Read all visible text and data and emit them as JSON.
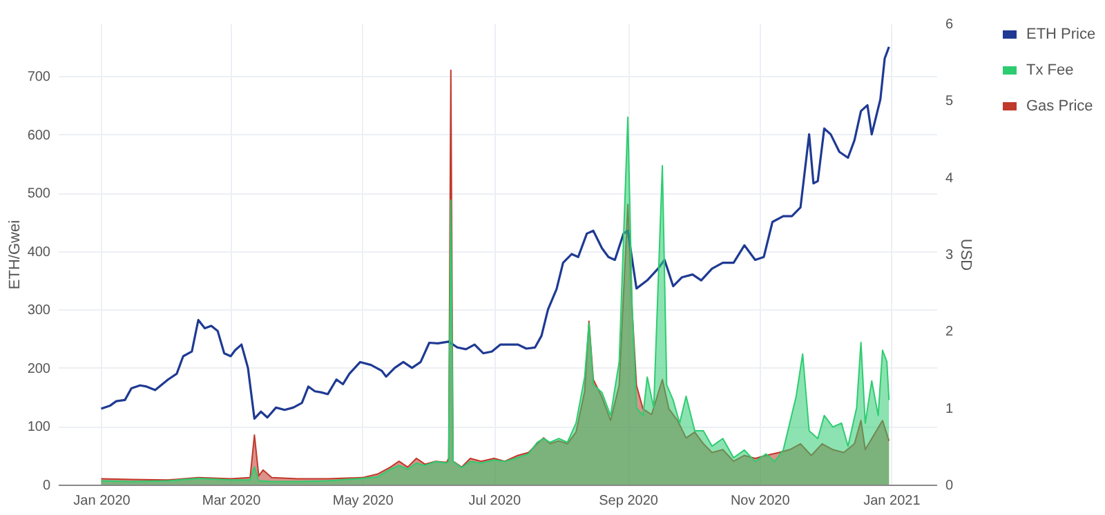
{
  "chart_data": {
    "type": "line",
    "ylabel": "ETH/Gwei",
    "y2label": "USD",
    "grid": true,
    "legend": "top right",
    "xlim": [
      "2019-12-12",
      "2021-01-22"
    ],
    "xticks": [
      {
        "value": "2020-01-01",
        "label": "Jan 2020"
      },
      {
        "value": "2020-03-01",
        "label": "Mar 2020"
      },
      {
        "value": "2020-05-01",
        "label": "May 2020"
      },
      {
        "value": "2020-07-01",
        "label": "Jul 2020"
      },
      {
        "value": "2020-09-01",
        "label": "Sep 2020"
      },
      {
        "value": "2020-11-01",
        "label": "Nov 2020"
      },
      {
        "value": "2021-01-01",
        "label": "Jan 2021"
      }
    ],
    "ylim": [
      0,
      790
    ],
    "yticks": [
      0,
      100,
      200,
      300,
      400,
      500,
      600,
      700
    ],
    "y2lim": [
      0,
      6
    ],
    "y2ticks": [
      0,
      1,
      2,
      3,
      4,
      5,
      6
    ],
    "series": [
      {
        "name": "ETH Price",
        "color": "#1f3a93",
        "x": [
          "2020-01-01",
          "2020-01-05",
          "2020-01-08",
          "2020-01-12",
          "2020-01-15",
          "2020-01-19",
          "2020-01-22",
          "2020-01-26",
          "2020-02-01",
          "2020-02-05",
          "2020-02-08",
          "2020-02-12",
          "2020-02-15",
          "2020-02-18",
          "2020-02-21",
          "2020-02-24",
          "2020-02-27",
          "2020-03-01",
          "2020-03-03",
          "2020-03-06",
          "2020-03-09",
          "2020-03-12",
          "2020-03-15",
          "2020-03-18",
          "2020-03-22",
          "2020-03-26",
          "2020-03-30",
          "2020-04-03",
          "2020-04-06",
          "2020-04-09",
          "2020-04-12",
          "2020-04-15",
          "2020-04-19",
          "2020-04-22",
          "2020-04-25",
          "2020-04-30",
          "2020-05-05",
          "2020-05-10",
          "2020-05-12",
          "2020-05-16",
          "2020-05-20",
          "2020-05-24",
          "2020-05-28",
          "2020-06-01",
          "2020-06-05",
          "2020-06-10",
          "2020-06-14",
          "2020-06-18",
          "2020-06-22",
          "2020-06-26",
          "2020-06-30",
          "2020-07-04",
          "2020-07-08",
          "2020-07-12",
          "2020-07-16",
          "2020-07-20",
          "2020-07-23",
          "2020-07-26",
          "2020-07-30",
          "2020-08-02",
          "2020-08-06",
          "2020-08-09",
          "2020-08-13",
          "2020-08-16",
          "2020-08-20",
          "2020-08-23",
          "2020-08-26",
          "2020-08-30",
          "2020-09-01",
          "2020-09-05",
          "2020-09-10",
          "2020-09-15",
          "2020-09-18",
          "2020-09-22",
          "2020-09-26",
          "2020-10-01",
          "2020-10-05",
          "2020-10-10",
          "2020-10-15",
          "2020-10-20",
          "2020-10-25",
          "2020-10-30",
          "2020-11-03",
          "2020-11-07",
          "2020-11-12",
          "2020-11-16",
          "2020-11-20",
          "2020-11-24",
          "2020-11-26",
          "2020-11-28",
          "2020-12-01",
          "2020-12-04",
          "2020-12-08",
          "2020-12-12",
          "2020-12-15",
          "2020-12-18",
          "2020-12-21",
          "2020-12-23",
          "2020-12-27",
          "2020-12-29",
          "2020-12-31"
        ],
        "values": [
          130,
          135,
          143,
          145,
          165,
          170,
          168,
          162,
          180,
          190,
          220,
          228,
          282,
          268,
          272,
          263,
          225,
          220,
          230,
          240,
          200,
          113,
          125,
          115,
          132,
          128,
          132,
          140,
          168,
          160,
          158,
          155,
          180,
          172,
          190,
          210,
          205,
          195,
          185,
          200,
          210,
          200,
          210,
          243,
          242,
          245,
          235,
          232,
          240,
          225,
          228,
          240,
          240,
          240,
          233,
          235,
          255,
          300,
          335,
          380,
          395,
          390,
          430,
          435,
          405,
          390,
          385,
          430,
          435,
          336,
          350,
          370,
          385,
          340,
          355,
          360,
          350,
          370,
          380,
          380,
          410,
          385,
          390,
          450,
          460,
          460,
          475,
          600,
          516,
          520,
          610,
          600,
          570,
          560,
          590,
          640,
          650,
          600,
          660,
          730,
          750
        ]
      },
      {
        "name": "Tx Fee",
        "type": "area",
        "axis": "y2",
        "color": "#2ecc71",
        "x": [
          "2020-01-01",
          "2020-01-15",
          "2020-02-01",
          "2020-02-15",
          "2020-03-01",
          "2020-03-10",
          "2020-03-12",
          "2020-03-14",
          "2020-03-20",
          "2020-04-01",
          "2020-04-15",
          "2020-05-01",
          "2020-05-08",
          "2020-05-14",
          "2020-05-18",
          "2020-05-22",
          "2020-05-26",
          "2020-05-30",
          "2020-06-04",
          "2020-06-09",
          "2020-06-10",
          "2020-06-11",
          "2020-06-12",
          "2020-06-16",
          "2020-06-20",
          "2020-06-25",
          "2020-07-01",
          "2020-07-06",
          "2020-07-12",
          "2020-07-17",
          "2020-07-21",
          "2020-07-24",
          "2020-07-27",
          "2020-07-31",
          "2020-08-04",
          "2020-08-08",
          "2020-08-12",
          "2020-08-14",
          "2020-08-16",
          "2020-08-20",
          "2020-08-24",
          "2020-08-28",
          "2020-09-01",
          "2020-09-03",
          "2020-09-05",
          "2020-09-08",
          "2020-09-10",
          "2020-09-13",
          "2020-09-17",
          "2020-09-19",
          "2020-09-22",
          "2020-09-25",
          "2020-09-28",
          "2020-10-02",
          "2020-10-06",
          "2020-10-10",
          "2020-10-15",
          "2020-10-20",
          "2020-10-25",
          "2020-10-30",
          "2020-11-04",
          "2020-11-08",
          "2020-11-12",
          "2020-11-15",
          "2020-11-18",
          "2020-11-21",
          "2020-11-24",
          "2020-11-28",
          "2020-12-01",
          "2020-12-05",
          "2020-12-09",
          "2020-12-12",
          "2020-12-16",
          "2020-12-18",
          "2020-12-20",
          "2020-12-23",
          "2020-12-26",
          "2020-12-28",
          "2020-12-30",
          "2020-12-31"
        ],
        "values": [
          0.05,
          0.04,
          0.05,
          0.08,
          0.06,
          0.06,
          0.23,
          0.05,
          0.04,
          0.04,
          0.05,
          0.08,
          0.1,
          0.2,
          0.25,
          0.2,
          0.28,
          0.25,
          0.3,
          0.28,
          0.3,
          3.7,
          0.3,
          0.22,
          0.3,
          0.28,
          0.32,
          0.3,
          0.35,
          0.4,
          0.55,
          0.6,
          0.55,
          0.6,
          0.55,
          0.8,
          1.4,
          2.1,
          1.3,
          1.2,
          0.9,
          1.6,
          4.78,
          2.3,
          1.0,
          0.9,
          1.4,
          1.0,
          4.15,
          1.3,
          1.1,
          0.8,
          1.15,
          0.7,
          0.7,
          0.5,
          0.6,
          0.35,
          0.45,
          0.3,
          0.4,
          0.3,
          0.45,
          0.8,
          1.15,
          1.7,
          0.7,
          0.6,
          0.9,
          0.75,
          0.8,
          0.5,
          1.0,
          1.85,
          0.8,
          1.35,
          0.9,
          1.75,
          1.6,
          1.1
        ]
      },
      {
        "name": "Gas Price",
        "type": "area",
        "color": "#c0392b",
        "x": [
          "2020-01-01",
          "2020-01-15",
          "2020-02-01",
          "2020-02-15",
          "2020-03-01",
          "2020-03-10",
          "2020-03-12",
          "2020-03-14",
          "2020-03-16",
          "2020-03-20",
          "2020-04-01",
          "2020-04-15",
          "2020-05-01",
          "2020-05-08",
          "2020-05-14",
          "2020-05-18",
          "2020-05-22",
          "2020-05-26",
          "2020-05-30",
          "2020-06-04",
          "2020-06-09",
          "2020-06-10",
          "2020-06-11",
          "2020-06-12",
          "2020-06-16",
          "2020-06-20",
          "2020-06-25",
          "2020-07-01",
          "2020-07-06",
          "2020-07-12",
          "2020-07-17",
          "2020-07-21",
          "2020-07-24",
          "2020-07-27",
          "2020-07-31",
          "2020-08-04",
          "2020-08-08",
          "2020-08-12",
          "2020-08-14",
          "2020-08-16",
          "2020-08-20",
          "2020-08-24",
          "2020-08-28",
          "2020-09-01",
          "2020-09-03",
          "2020-09-05",
          "2020-09-08",
          "2020-09-12",
          "2020-09-17",
          "2020-09-20",
          "2020-09-24",
          "2020-09-28",
          "2020-10-02",
          "2020-10-06",
          "2020-10-10",
          "2020-10-15",
          "2020-10-20",
          "2020-10-25",
          "2020-10-30",
          "2020-11-04",
          "2020-11-10",
          "2020-11-15",
          "2020-11-20",
          "2020-11-25",
          "2020-11-30",
          "2020-12-05",
          "2020-12-10",
          "2020-12-15",
          "2020-12-18",
          "2020-12-20",
          "2020-12-24",
          "2020-12-28",
          "2020-12-31"
        ],
        "values": [
          10,
          9,
          8,
          12,
          10,
          12,
          85,
          15,
          25,
          12,
          10,
          10,
          12,
          18,
          30,
          40,
          30,
          45,
          35,
          40,
          38,
          45,
          710,
          40,
          30,
          45,
          40,
          45,
          40,
          50,
          55,
          70,
          80,
          70,
          75,
          70,
          90,
          160,
          280,
          180,
          150,
          110,
          170,
          480,
          300,
          170,
          130,
          120,
          180,
          130,
          110,
          80,
          90,
          70,
          55,
          60,
          40,
          50,
          45,
          50,
          55,
          60,
          70,
          50,
          70,
          60,
          55,
          70,
          110,
          60,
          85,
          110,
          75
        ]
      }
    ]
  }
}
